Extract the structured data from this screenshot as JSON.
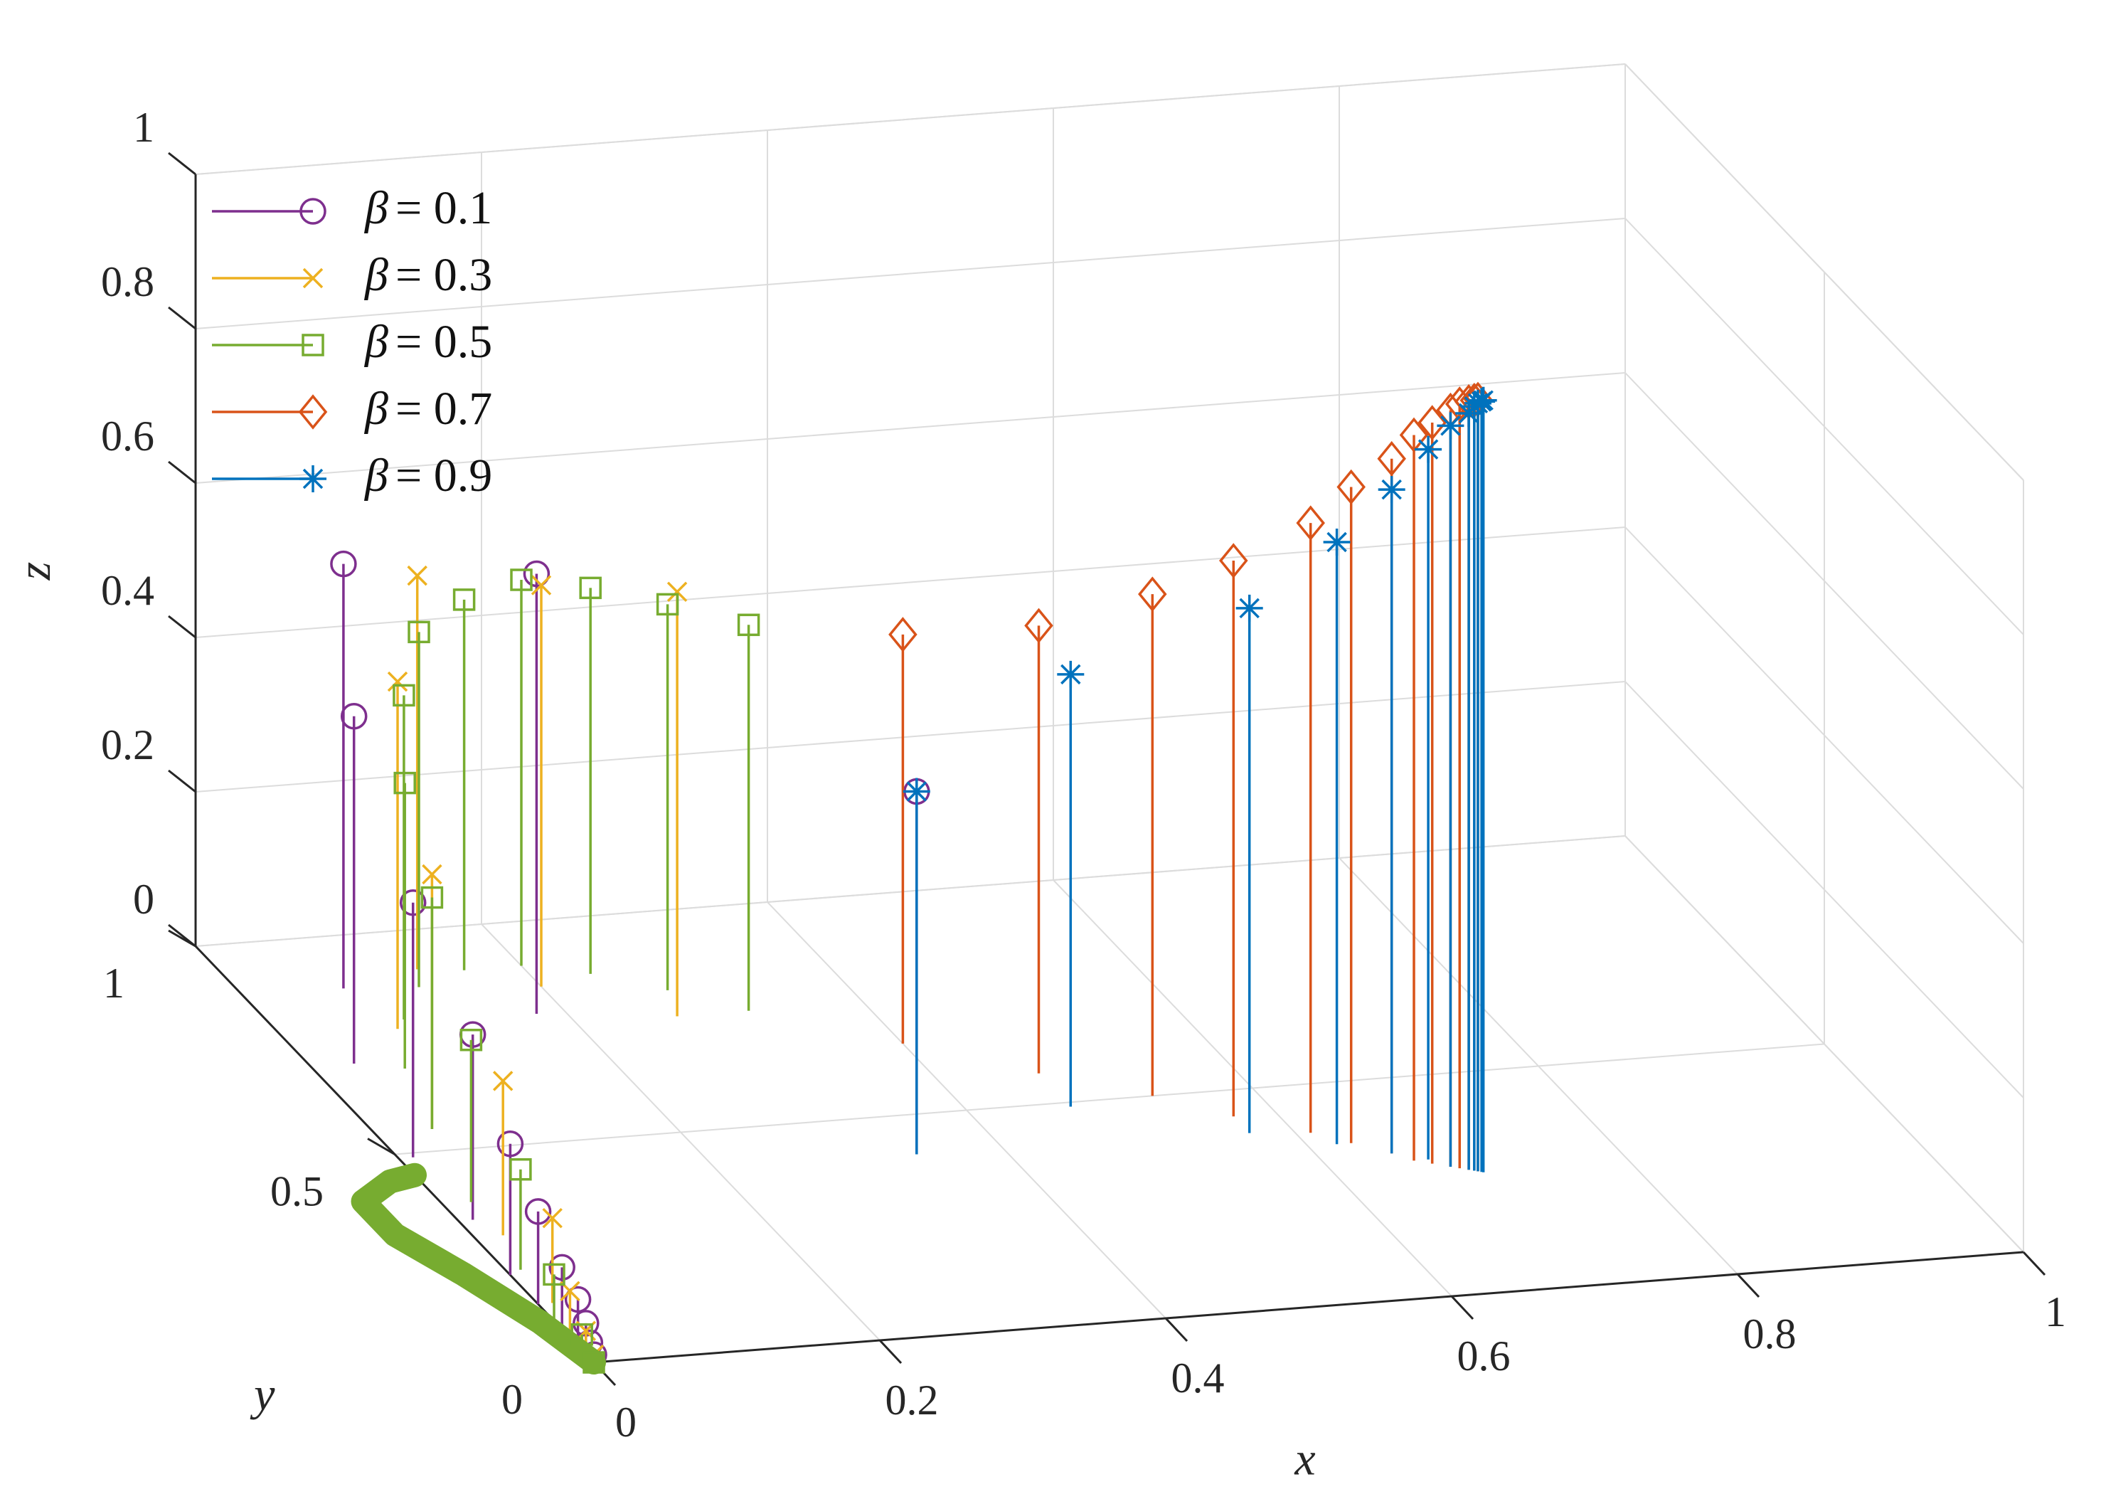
{
  "chart_data": {
    "type": "stem3",
    "xlabel": "x",
    "ylabel": "y",
    "zlabel": "z",
    "xlim": [
      0,
      1
    ],
    "ylim": [
      0,
      1
    ],
    "zlim": [
      0,
      1
    ],
    "grid": true,
    "legend_placement": "top-left",
    "x_ticks": [
      "0",
      "0.2",
      "0.4",
      "0.6",
      "0.8",
      "1"
    ],
    "y_ticks": [
      "0",
      "0.5",
      "1"
    ],
    "z_ticks": [
      "0",
      "0.2",
      "0.4",
      "0.6",
      "0.8",
      "1"
    ],
    "series": [
      {
        "name": "β = 0.1",
        "symbol": "β",
        "value_text": "= 0.1",
        "color": "#7E2F8E",
        "marker": "circle",
        "points": [
          {
            "x": 0.0,
            "y": 0.0,
            "z": 0.01
          },
          {
            "x": 0.0,
            "y": 0.01,
            "z": 0.02
          },
          {
            "x": 0.0,
            "y": 0.02,
            "z": 0.04
          },
          {
            "x": 0.0,
            "y": 0.04,
            "z": 0.06
          },
          {
            "x": 0.0,
            "y": 0.08,
            "z": 0.08
          },
          {
            "x": 0.0,
            "y": 0.14,
            "z": 0.12
          },
          {
            "x": 0.0,
            "y": 0.21,
            "z": 0.17
          },
          {
            "x": 0.01,
            "y": 0.34,
            "z": 0.24
          },
          {
            "x": 0.01,
            "y": 0.49,
            "z": 0.33
          },
          {
            "x": 0.03,
            "y": 0.71,
            "z": 0.45
          },
          {
            "x": 0.07,
            "y": 0.88,
            "z": 0.55
          },
          {
            "x": 0.18,
            "y": 0.79,
            "z": 0.57
          },
          {
            "x": 0.34,
            "y": 0.41,
            "z": 0.47
          }
        ]
      },
      {
        "name": "β = 0.3",
        "symbol": "β",
        "value_text": "= 0.3",
        "color": "#EDB120",
        "marker": "x",
        "points": [
          {
            "x": 0.0,
            "y": 0.0,
            "z": 0.01
          },
          {
            "x": 0.0,
            "y": 0.02,
            "z": 0.03
          },
          {
            "x": 0.0,
            "y": 0.06,
            "z": 0.06
          },
          {
            "x": 0.01,
            "y": 0.14,
            "z": 0.11
          },
          {
            "x": 0.02,
            "y": 0.3,
            "z": 0.2
          },
          {
            "x": 0.04,
            "y": 0.55,
            "z": 0.33
          },
          {
            "x": 0.08,
            "y": 0.78,
            "z": 0.45
          },
          {
            "x": 0.13,
            "y": 0.91,
            "z": 0.51
          },
          {
            "x": 0.2,
            "y": 0.85,
            "z": 0.52
          },
          {
            "x": 0.27,
            "y": 0.76,
            "z": 0.55
          }
        ]
      },
      {
        "name": "β = 0.5",
        "symbol": "β",
        "value_text": "= 0.5",
        "color": "#77AC30",
        "marker": "square",
        "points": [
          {
            "x": 0.0,
            "y": 0.0,
            "z": 0.0
          },
          {
            "x": 0.0,
            "y": 0.03,
            "z": 0.02
          },
          {
            "x": 0.0,
            "y": 0.1,
            "z": 0.06
          },
          {
            "x": 0.01,
            "y": 0.22,
            "z": 0.13
          },
          {
            "x": 0.02,
            "y": 0.38,
            "z": 0.21
          },
          {
            "x": 0.04,
            "y": 0.55,
            "z": 0.3
          },
          {
            "x": 0.06,
            "y": 0.69,
            "z": 0.37
          },
          {
            "x": 0.09,
            "y": 0.8,
            "z": 0.42
          },
          {
            "x": 0.12,
            "y": 0.87,
            "z": 0.46
          },
          {
            "x": 0.16,
            "y": 0.9,
            "z": 0.48
          },
          {
            "x": 0.2,
            "y": 0.9,
            "z": 0.5
          },
          {
            "x": 0.24,
            "y": 0.87,
            "z": 0.5
          },
          {
            "x": 0.28,
            "y": 0.82,
            "z": 0.5
          },
          {
            "x": 0.32,
            "y": 0.76,
            "z": 0.5
          }
        ],
        "trail": [
          {
            "x": 0.0,
            "y": 0.0,
            "z": 0.0
          },
          {
            "x": -0.01,
            "y": 0.1,
            "z": 0.0
          },
          {
            "x": -0.03,
            "y": 0.22,
            "z": 0.0
          },
          {
            "x": -0.05,
            "y": 0.32,
            "z": 0.0
          },
          {
            "x": -0.05,
            "y": 0.4,
            "z": 0.0
          },
          {
            "x": -0.02,
            "y": 0.44,
            "z": 0.0
          },
          {
            "x": 0.0,
            "y": 0.45,
            "z": 0.0
          }
        ]
      },
      {
        "name": "β = 0.7",
        "symbol": "β",
        "value_text": "= 0.7",
        "color": "#D95319",
        "marker": "diamond",
        "points": [
          {
            "x": 0.4,
            "y": 0.66,
            "z": 0.53
          },
          {
            "x": 0.47,
            "y": 0.57,
            "z": 0.58
          },
          {
            "x": 0.53,
            "y": 0.5,
            "z": 0.65
          },
          {
            "x": 0.57,
            "y": 0.44,
            "z": 0.72
          },
          {
            "x": 0.61,
            "y": 0.39,
            "z": 0.79
          },
          {
            "x": 0.63,
            "y": 0.36,
            "z": 0.85
          },
          {
            "x": 0.65,
            "y": 0.33,
            "z": 0.9
          },
          {
            "x": 0.66,
            "y": 0.31,
            "z": 0.94
          },
          {
            "x": 0.67,
            "y": 0.3,
            "z": 0.96
          },
          {
            "x": 0.68,
            "y": 0.29,
            "z": 0.98
          },
          {
            "x": 0.685,
            "y": 0.285,
            "z": 0.99
          },
          {
            "x": 0.69,
            "y": 0.28,
            "z": 0.995
          },
          {
            "x": 0.693,
            "y": 0.277,
            "z": 0.998
          },
          {
            "x": 0.695,
            "y": 0.275,
            "z": 1.0
          }
        ]
      },
      {
        "name": "β = 0.9",
        "symbol": "β",
        "value_text": "= 0.9",
        "color": "#0072BD",
        "marker": "asterisk",
        "points": [
          {
            "x": 0.34,
            "y": 0.41,
            "z": 0.47
          },
          {
            "x": 0.47,
            "y": 0.49,
            "z": 0.56
          },
          {
            "x": 0.57,
            "y": 0.4,
            "z": 0.68
          },
          {
            "x": 0.62,
            "y": 0.36,
            "z": 0.78
          },
          {
            "x": 0.65,
            "y": 0.33,
            "z": 0.86
          },
          {
            "x": 0.67,
            "y": 0.31,
            "z": 0.92
          },
          {
            "x": 0.68,
            "y": 0.29,
            "z": 0.96
          },
          {
            "x": 0.69,
            "y": 0.28,
            "z": 0.98
          },
          {
            "x": 0.693,
            "y": 0.277,
            "z": 0.99
          },
          {
            "x": 0.695,
            "y": 0.275,
            "z": 0.995
          },
          {
            "x": 0.697,
            "y": 0.273,
            "z": 0.998
          },
          {
            "x": 0.698,
            "y": 0.272,
            "z": 1.0
          }
        ]
      }
    ]
  }
}
